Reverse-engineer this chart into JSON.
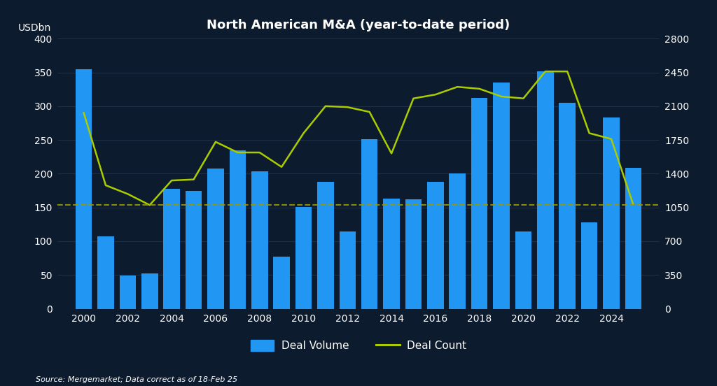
{
  "title": "North American M&A (year-to-date period)",
  "ylabel_left": "USDbn",
  "background_color": "#0d1b2e",
  "text_color": "#ffffff",
  "source_text": "Source: Mergemarket; Data correct as of 18-Feb 25",
  "years": [
    2000,
    2001,
    2002,
    2003,
    2004,
    2005,
    2006,
    2007,
    2008,
    2009,
    2010,
    2011,
    2012,
    2013,
    2014,
    2015,
    2016,
    2017,
    2018,
    2019,
    2020,
    2021,
    2022,
    2023,
    2024,
    2025
  ],
  "deal_volume": [
    355,
    107,
    49,
    52,
    178,
    175,
    208,
    235,
    204,
    77,
    151,
    188,
    115,
    251,
    163,
    162,
    188,
    200,
    312,
    335,
    115,
    352,
    305,
    128,
    283,
    209
  ],
  "deal_count": [
    2030,
    1280,
    1190,
    1075,
    1330,
    1340,
    1730,
    1620,
    1620,
    1470,
    1820,
    2100,
    2090,
    2040,
    1610,
    2180,
    2220,
    2300,
    2280,
    2200,
    2180,
    2460,
    2460,
    1820,
    1760,
    1080
  ],
  "bar_color": "#2196f3",
  "line_color": "#aacc00",
  "dashed_color": "#999900",
  "ylim_left": [
    0,
    400
  ],
  "ylim_right": [
    0,
    2800
  ],
  "yticks_left": [
    0,
    50,
    100,
    150,
    200,
    250,
    300,
    350,
    400
  ],
  "yticks_right": [
    0,
    350,
    700,
    1050,
    1400,
    1750,
    2100,
    2450,
    2800
  ],
  "xtick_positions": [
    2000,
    2002,
    2004,
    2006,
    2008,
    2010,
    2012,
    2014,
    2016,
    2018,
    2020,
    2022,
    2024
  ],
  "xtick_labels": [
    "2000",
    "2002",
    "2004",
    "2006",
    "2008",
    "2010",
    "2012",
    "2014",
    "2016",
    "2018",
    "2020",
    "2022",
    "2024"
  ],
  "legend_labels": [
    "Deal Volume",
    "Deal Count"
  ],
  "grid_color": "#1e3048",
  "avg_line_deal_count": 1080,
  "bar_width": 0.75,
  "xlim": [
    1998.8,
    2026.2
  ]
}
